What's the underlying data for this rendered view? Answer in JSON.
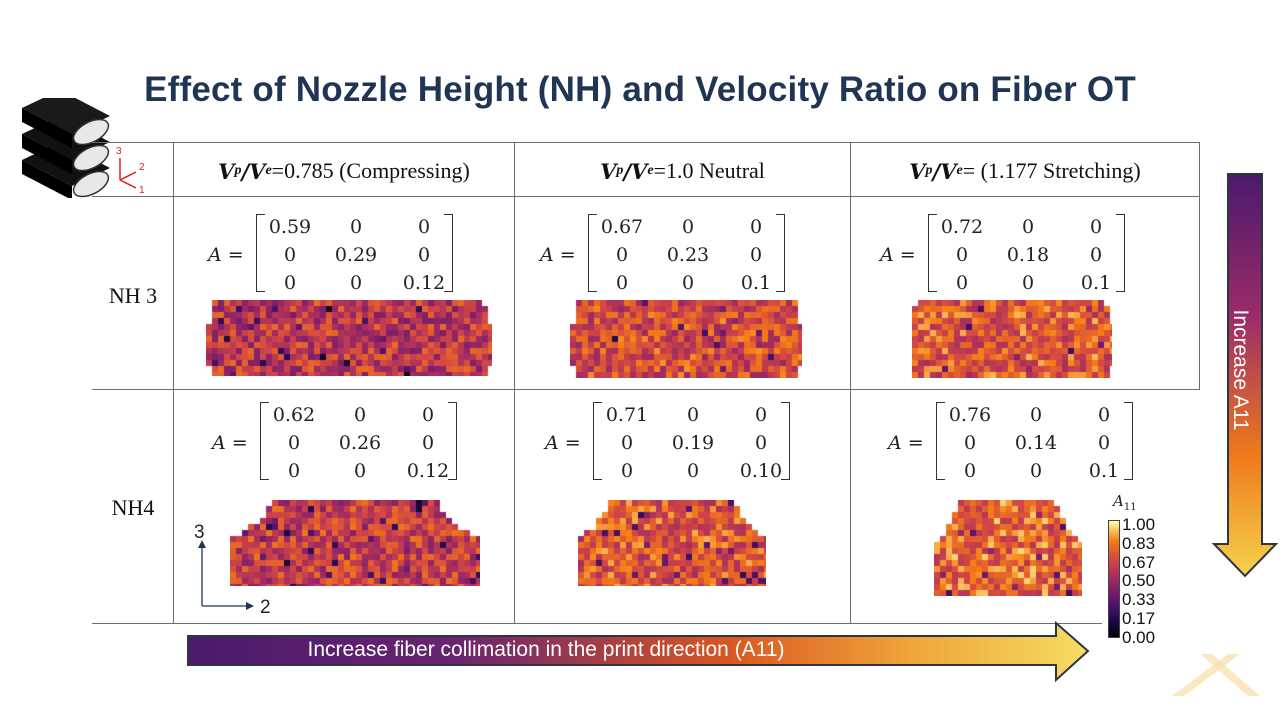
{
  "title": "Effect of Nozzle Height (NH) and Velocity Ratio on Fiber OT",
  "icon_axes": {
    "a1": "1",
    "a2": "2",
    "a3": "3"
  },
  "columns": [
    {
      "ratio_label": "V",
      "p": "p",
      "e": "e",
      "text": "=0.785 (Compressing)"
    },
    {
      "ratio_label": "V",
      "p": "p",
      "e": "e",
      "text": "=1.0 Neutral"
    },
    {
      "ratio_label": "V",
      "p": "p",
      "e": "e",
      "text": "= (1.177 Stretching)"
    }
  ],
  "rows": [
    {
      "label": "NH 3"
    },
    {
      "label": "NH4"
    }
  ],
  "matrix_lhs": "A =",
  "matrices": [
    [
      [
        "0.59",
        "0",
        "0"
      ],
      [
        "0",
        "0.29",
        "0"
      ],
      [
        "0",
        "0",
        "0.12"
      ]
    ],
    [
      [
        "0.67",
        "0",
        "0"
      ],
      [
        "0",
        "0.23",
        "0"
      ],
      [
        "0",
        "0",
        "0.1"
      ]
    ],
    [
      [
        "0.72",
        "0",
        "0"
      ],
      [
        "0",
        "0.18",
        "0"
      ],
      [
        "0",
        "0",
        "0.1"
      ]
    ],
    [
      [
        "0.62",
        "0",
        "0"
      ],
      [
        "0",
        "0.26",
        "0"
      ],
      [
        "0",
        "0",
        "0.12"
      ]
    ],
    [
      [
        "0.71",
        "0",
        "0"
      ],
      [
        "0",
        "0.19",
        "0"
      ],
      [
        "0",
        "0",
        "0.10"
      ]
    ],
    [
      [
        "0.76",
        "0",
        "0"
      ],
      [
        "0",
        "0.14",
        "0"
      ],
      [
        "0",
        "0",
        "0.1"
      ]
    ]
  ],
  "axes_inset": {
    "vertical": "3",
    "horizontal": "2"
  },
  "colorbar": {
    "title": "A",
    "title_sub": "11",
    "ticks": [
      "1.00",
      "0.83",
      "0.67",
      "0.50",
      "0.33",
      "0.17",
      "0.00"
    ]
  },
  "bottom_arrow_text": "Increase fiber collimation in the print direction (A11)",
  "right_arrow_text": "Increase A11",
  "colors": {
    "title": "#1f3553",
    "arrow_dark": "#4b1a6b",
    "arrow_light": "#f4dd63",
    "arrow_outline": "#2d3443"
  }
}
